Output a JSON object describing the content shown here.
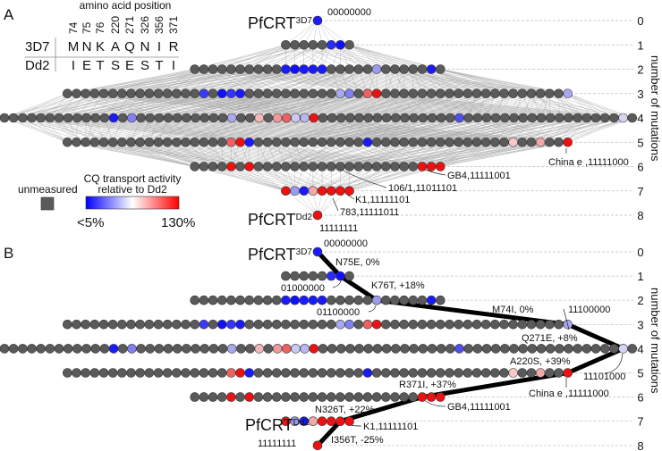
{
  "panel_a": {
    "letter": "A",
    "table": {
      "title": "amino acid position",
      "positions": [
        "74",
        "75",
        "76",
        "220",
        "271",
        "326",
        "356",
        "371"
      ],
      "rows": [
        {
          "strain": "3D7",
          "residues": [
            "M",
            "N",
            "K",
            "A",
            "Q",
            "N",
            "I",
            "R"
          ]
        },
        {
          "strain": "Dd2",
          "residues": [
            "I",
            "E",
            "T",
            "S",
            "E",
            "S",
            "T",
            "I"
          ]
        }
      ]
    },
    "top_label": {
      "name": "PfCRT",
      "sup": "3D7",
      "code": "00000000"
    },
    "bottom_label": {
      "name": "PfCRT",
      "sup": "Dd2",
      "code": "11111111"
    },
    "annotations": {
      "china": "China e ,11111000",
      "gb4": "GB4,11111001",
      "s106": "106/1,11011101",
      "k1": "K1,11111101",
      "s783": "783,11111011"
    },
    "legend": {
      "unmeasured": "unmeasured",
      "title_line1": "CQ transport activity",
      "title_line2": "relative to Dd2",
      "min_label": "<5%",
      "max_label": "130%",
      "gradient": [
        "#0000ff",
        "#ffffff",
        "#ff0000"
      ],
      "unmeasured_color": "#5a5a5a"
    }
  },
  "panel_b": {
    "letter": "B",
    "top_label": {
      "name": "PfCRT",
      "sup": "3D7",
      "code": "00000000"
    },
    "bottom_label": {
      "name": "PfCRT",
      "sup": "Dd2",
      "code": "11111111"
    },
    "steps": {
      "n75e": "N75E, 0%",
      "c01000000": "01000000",
      "k76t": "K76T, +18%",
      "c01100000": "01100000",
      "m74i": "M74I, 0%",
      "c11100000": "11100000",
      "q271e": "Q271E, +8%",
      "a220s": "A220S, +39%",
      "c11101000": "11101000",
      "china": "China e ,11111000",
      "r371i": "R371I, +37%",
      "gb4": "GB4,11111001",
      "n326t": "N326T, +22%",
      "k1": "K1,11111101",
      "i356t": "I356T, -25%"
    },
    "path": [
      [
        0,
        0
      ],
      [
        1,
        6
      ],
      [
        2,
        20
      ],
      [
        3,
        55
      ],
      [
        4,
        68
      ],
      [
        5,
        55
      ],
      [
        6,
        25
      ],
      [
        7,
        6
      ],
      [
        8,
        0
      ]
    ]
  },
  "axis": {
    "label": "number of mutations",
    "levels": [
      "0",
      "1",
      "2",
      "3",
      "4",
      "5",
      "6",
      "7",
      "8"
    ]
  },
  "chart_data": {
    "type": "hypercube-lattice",
    "node_counts": [
      1,
      8,
      28,
      56,
      70,
      56,
      28,
      8,
      1
    ],
    "default_color": "#5a5a5a",
    "colored_nodes": [
      {
        "0": "#1a1aff"
      },
      {
        "5": "#2b2bff",
        "6": "#1010ff"
      },
      {
        "10": "#1a1aff",
        "11": "#1010ff",
        "12": "#1a1aff",
        "13": "#1a1aff",
        "14": "#1a1aff",
        "20": "#9b9bef",
        "26": "#1a1aff"
      },
      {
        "15": "#3a3aff",
        "17": "#1010ff",
        "18": "#3535ff",
        "19": "#1a1aff",
        "30": "#a8a8f0",
        "31": "#8080f0",
        "33": "#f06060",
        "34": "#ee1111",
        "55": "#a8a8f0"
      },
      {
        "12": "#1a1aff",
        "14": "#8080f0",
        "25": "#a8a8f0",
        "28": "#f5b8b8",
        "30": "#f29a9a",
        "31": "#f06060",
        "32": "#cacaf4",
        "33": "#b8b8f2",
        "34": "#ee1111",
        "50": "#4f4ff0",
        "68": "#d4d4f6"
      },
      {
        "18": "#f06060",
        "19": "#ee1111",
        "20": "#1a1aff",
        "33": "#1a1aff",
        "49": "#f8c8c8",
        "52": "#f2a8a8",
        "55": "#ee1111"
      },
      {
        "4": "#ee1111",
        "6": "#ee1111",
        "25": "#ee1111",
        "26": "#ee1111",
        "27": "#ee1111"
      },
      {
        "0": "#ee1111",
        "1": "#9b9bef",
        "2": "#1a1aff",
        "3": "#f2a8a8",
        "4": "#ee1111",
        "5": "#ee1111",
        "6": "#ee1111",
        "7": "#ee1111"
      },
      {
        "0": "#ee1111"
      }
    ]
  }
}
